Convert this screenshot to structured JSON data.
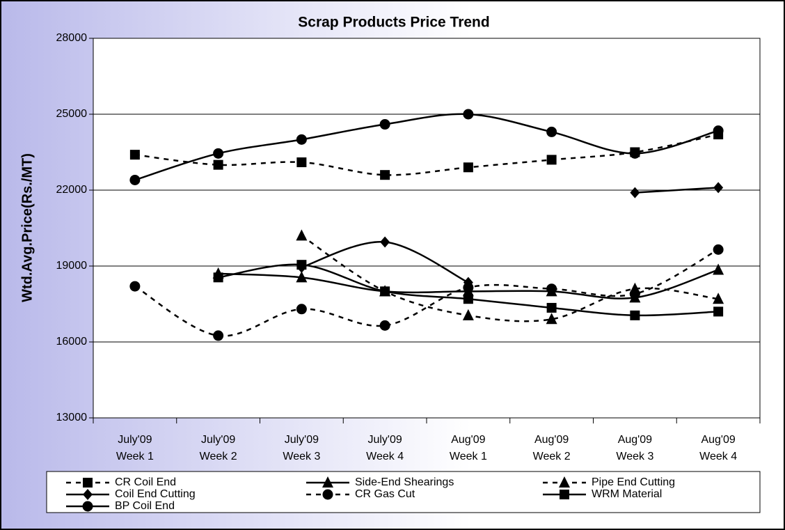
{
  "chart_data": {
    "type": "line",
    "title": "Scrap Products Price Trend",
    "y_label": "Wtd.Avg.Price(Rs./MT)",
    "categories": [
      [
        "July'09",
        "Week 1"
      ],
      [
        "July'09",
        "Week 2"
      ],
      [
        "July'09",
        "Week 3"
      ],
      [
        "July'09",
        "Week 4"
      ],
      [
        "Aug'09",
        "Week 1"
      ],
      [
        "Aug'09",
        "Week 2"
      ],
      [
        "Aug'09",
        "Week 3"
      ],
      [
        "Aug'09",
        "Week 4"
      ]
    ],
    "ylim": [
      13000,
      28000
    ],
    "yticks": [
      13000,
      16000,
      19000,
      22000,
      25000,
      28000
    ],
    "grid": true,
    "smooth": true,
    "legend": "bottom",
    "series": [
      {
        "name": "CR Coil End",
        "color": "#000000",
        "style": "dashed",
        "marker": "square",
        "values": [
          23400,
          23000,
          23100,
          22600,
          22900,
          23200,
          23500,
          24200
        ]
      },
      {
        "name": "Side-End Shearings",
        "color": "#000000",
        "style": "solid",
        "marker": "triangle",
        "values": [
          null,
          18700,
          18550,
          18000,
          18000,
          18000,
          17750,
          18850
        ]
      },
      {
        "name": "Pipe End Cutting",
        "color": "#000000",
        "style": "dashed",
        "marker": "triangle",
        "values": [
          null,
          null,
          20200,
          18000,
          17050,
          16900,
          18100,
          17700
        ]
      },
      {
        "name": "Coil End Cutting",
        "color": "#000000",
        "style": "solid",
        "marker": "diamond",
        "values": [
          null,
          null,
          18950,
          19950,
          18350,
          null,
          21900,
          22100
        ]
      },
      {
        "name": "CR Gas Cut",
        "color": "#000000",
        "style": "dashed",
        "marker": "circle",
        "values": [
          18200,
          16250,
          17300,
          16650,
          18150,
          18100,
          17900,
          19650
        ]
      },
      {
        "name": "WRM Material",
        "color": "#000000",
        "style": "solid",
        "marker": "square",
        "values": [
          null,
          18550,
          19050,
          18000,
          17700,
          17350,
          17050,
          17200
        ]
      },
      {
        "name": "BP Coil End",
        "color": "#000000",
        "style": "solid",
        "marker": "circle",
        "values": [
          22400,
          23450,
          24000,
          24600,
          25000,
          24300,
          23450,
          24350
        ]
      }
    ]
  }
}
